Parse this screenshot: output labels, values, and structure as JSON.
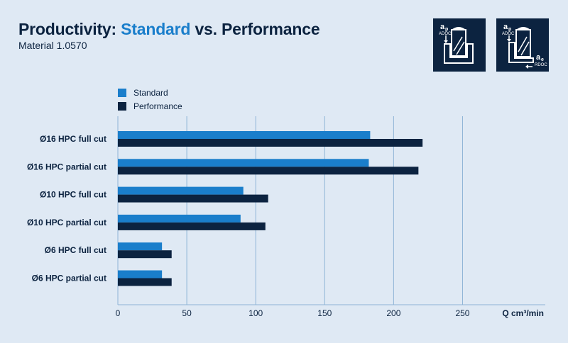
{
  "header": {
    "title_part1": "Productivity: ",
    "title_part2": "Standard",
    "title_part3": " vs. Performance",
    "subtitle": "Material 1.0570"
  },
  "icons": {
    "full_cut": {
      "name": "full-cut-diagram-icon",
      "label_a": "a",
      "label_sub": "p",
      "label_caption": "ADOC"
    },
    "partial_cut": {
      "name": "partial-cut-diagram-icon",
      "label_a1": "a",
      "label_sub1": "p",
      "label_caption1": "ADOC",
      "label_a2": "a",
      "label_sub2": "e",
      "label_caption2": "RDOC"
    }
  },
  "colors": {
    "standard": "#1a7ecb",
    "performance": "#0c2340",
    "grid": "#8fb4d6",
    "background": "#dfe9f4"
  },
  "chart_data": {
    "type": "bar",
    "orientation": "horizontal",
    "title": "Productivity: Standard vs. Performance",
    "subtitle": "Material 1.0570",
    "categories": [
      "Ø16 HPC full cut",
      "Ø16 HPC partial cut",
      "Ø10 HPC full cut",
      "Ø10 HPC partial cut",
      "Ø6 HPC full cut",
      "Ø6 HPC partial cut"
    ],
    "series": [
      {
        "name": "Standard",
        "color": "#1a7ecb",
        "values": [
          183,
          182,
          91,
          89,
          32,
          32
        ]
      },
      {
        "name": "Performance",
        "color": "#0c2340",
        "values": [
          221,
          218,
          109,
          107,
          39,
          39
        ]
      }
    ],
    "xlabel": "Q cm³/min",
    "xlim": [
      0,
      310
    ],
    "xticks": [
      0,
      50,
      100,
      150,
      200,
      250
    ],
    "grid": true,
    "legend": "top-left"
  }
}
